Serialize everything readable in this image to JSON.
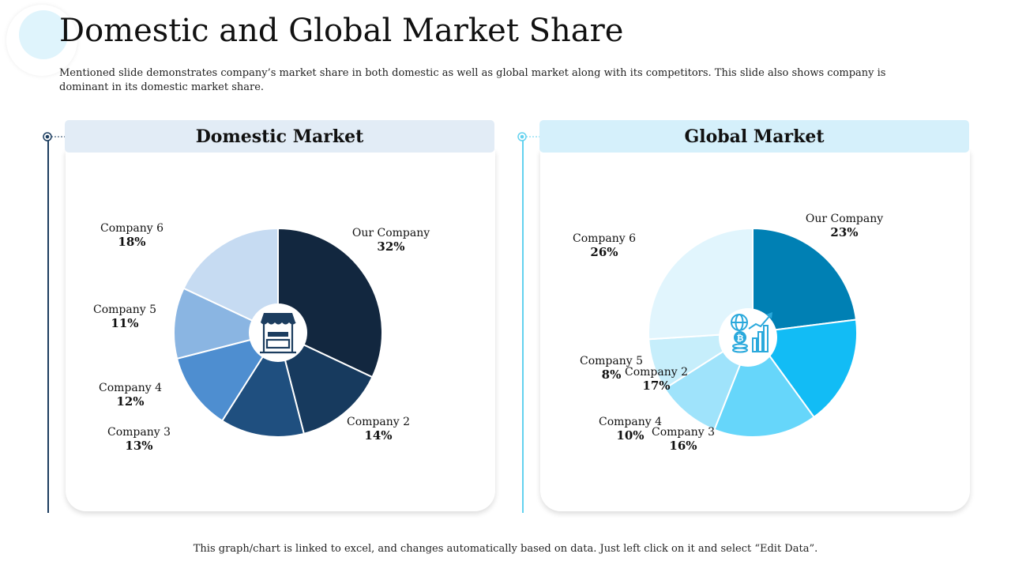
{
  "title": "Domestic and Global Market Share",
  "subtitle": "Mentioned slide demonstrates company’s market share in both domestic as well as global market along with its competitors. This slide also shows company is dominant in its domestic market share.",
  "footer": "This graph/chart is linked to excel, and changes automatically based on data. Just left click on it and select “Edit Data”.",
  "panels": [
    {
      "header": "Domestic Market",
      "header_bg": "#e2ecf6",
      "accent": "#1c3d5f",
      "center_icon": "market-stall-icon"
    },
    {
      "header": "Global Market",
      "header_bg": "#d5f0fb",
      "accent": "#63d2ef",
      "center_icon": "global-finance-icon"
    }
  ],
  "chart_data": [
    {
      "type": "pie",
      "title": "Domestic Market",
      "categories": [
        "Our Company",
        "Company 2",
        "Company 3",
        "Company 4",
        "Company 5",
        "Company 6"
      ],
      "values": [
        32,
        14,
        13,
        12,
        11,
        18
      ],
      "labels": [
        "32%",
        "14%",
        "13%",
        "12%",
        "11%",
        "18%"
      ],
      "colors": [
        "#12273f",
        "#173a5e",
        "#1f4f7f",
        "#4e8ed0",
        "#8ab5e2",
        "#c6dbf2"
      ]
    },
    {
      "type": "pie",
      "title": "Global Market",
      "categories": [
        "Our Company",
        "Company 2",
        "Company 3",
        "Company 4",
        "Company 5",
        "Company 6"
      ],
      "values": [
        23,
        17,
        16,
        10,
        8,
        26
      ],
      "labels": [
        "23%",
        "17%",
        "16%",
        "10%",
        "8%",
        "26%"
      ],
      "colors": [
        "#0080b4",
        "#12bcf5",
        "#66d6fa",
        "#9fe3fb",
        "#c6eefb",
        "#e1f5fd"
      ]
    }
  ]
}
